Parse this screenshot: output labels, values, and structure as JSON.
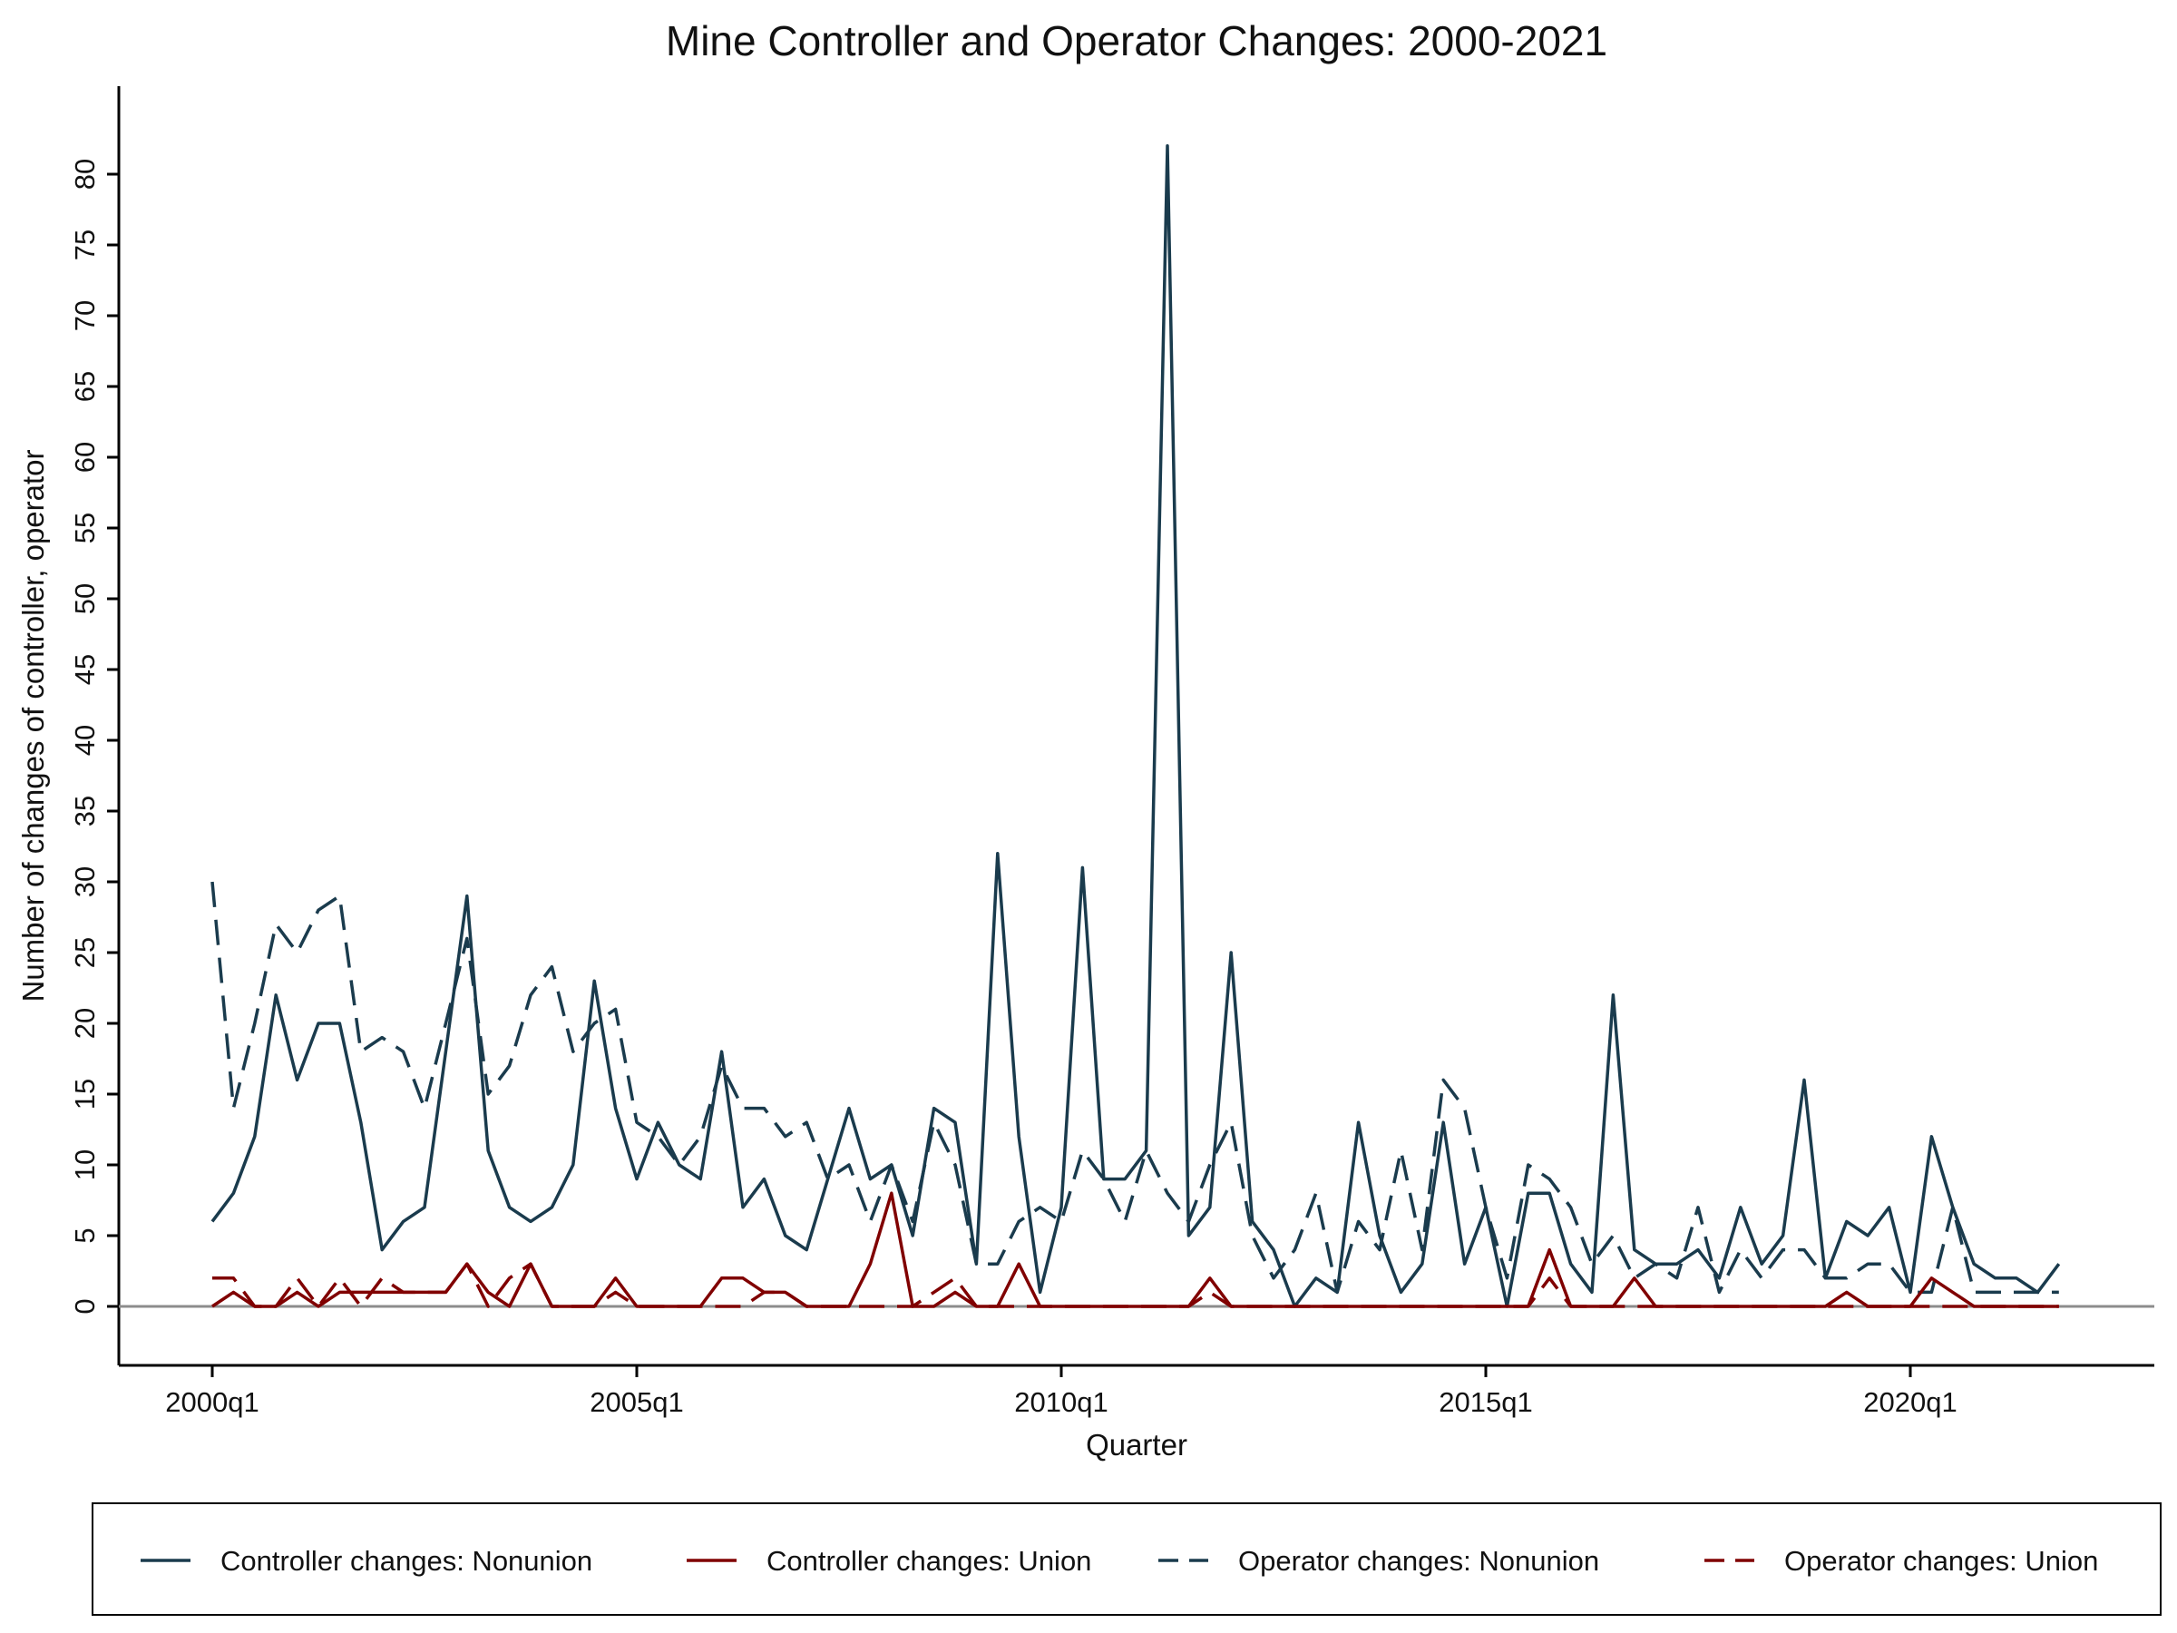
{
  "chart_data": {
    "type": "line",
    "title": "Mine Controller and Operator Changes: 2000-2021",
    "xlabel": "Quarter",
    "ylabel": "Number of changes of controller, operator",
    "xlim": [
      "2000q1",
      "2021q4"
    ],
    "ylim": [
      0,
      80
    ],
    "x_ticks": [
      "2000q1",
      "2005q1",
      "2010q1",
      "2015q1",
      "2020q1"
    ],
    "y_ticks": [
      0,
      5,
      10,
      15,
      20,
      25,
      30,
      35,
      40,
      45,
      50,
      55,
      60,
      65,
      70,
      75,
      80
    ],
    "reference_line": 0,
    "grid": false,
    "legend_position": "bottom",
    "colors": {
      "nonunion": "#1a3b4d",
      "union": "#800000",
      "zero_line": "#8c8c8c"
    },
    "quarter_start": "2000q1",
    "series": [
      {
        "name": "Controller changes: Nonunion",
        "style": "solid",
        "color": "#1a3b4d",
        "values": [
          6,
          8,
          12,
          22,
          16,
          20,
          20,
          13,
          4,
          6,
          7,
          18,
          29,
          11,
          7,
          6,
          7,
          10,
          23,
          14,
          9,
          13,
          10,
          9,
          18,
          7,
          9,
          5,
          4,
          9,
          14,
          9,
          10,
          5,
          14,
          13,
          3,
          32,
          12,
          1,
          7,
          31,
          9,
          9,
          11,
          82,
          5,
          7,
          25,
          6,
          4,
          0,
          2,
          1,
          13,
          5,
          1,
          3,
          13,
          3,
          7,
          0,
          8,
          8,
          3,
          1,
          22,
          4,
          3,
          3,
          4,
          2,
          7,
          3,
          5,
          16,
          2,
          6,
          5,
          7,
          1,
          12,
          7,
          3,
          2,
          2,
          1,
          3
        ]
      },
      {
        "name": "Controller changes: Union",
        "style": "solid",
        "color": "#800000",
        "values": [
          0,
          1,
          0,
          0,
          1,
          0,
          1,
          1,
          1,
          1,
          1,
          1,
          3,
          1,
          0,
          3,
          0,
          0,
          0,
          2,
          0,
          0,
          0,
          0,
          2,
          2,
          1,
          1,
          0,
          0,
          0,
          3,
          8,
          0,
          0,
          1,
          0,
          0,
          3,
          0,
          0,
          0,
          0,
          0,
          0,
          0,
          0,
          2,
          0,
          0,
          0,
          0,
          0,
          0,
          0,
          0,
          0,
          0,
          0,
          0,
          0,
          0,
          0,
          4,
          0,
          0,
          0,
          2,
          0,
          0,
          0,
          0,
          0,
          0,
          0,
          0,
          0,
          1,
          0,
          0,
          0,
          2,
          1,
          0,
          0,
          0,
          0,
          0
        ]
      },
      {
        "name": "Operator changes: Nonunion",
        "style": "dashed",
        "color": "#1a3b4d",
        "values": [
          30,
          14,
          20,
          27,
          25,
          28,
          29,
          18,
          19,
          18,
          14,
          20,
          26,
          15,
          17,
          22,
          24,
          18,
          20,
          21,
          13,
          12,
          10,
          12,
          17,
          14,
          14,
          12,
          13,
          9,
          10,
          6,
          10,
          6,
          13,
          10,
          3,
          3,
          6,
          7,
          6,
          11,
          9,
          6,
          11,
          8,
          6,
          10,
          13,
          5,
          2,
          4,
          8,
          1,
          6,
          4,
          11,
          4,
          16,
          14,
          7,
          2,
          10,
          9,
          7,
          3,
          5,
          2,
          3,
          2,
          7,
          1,
          4,
          2,
          4,
          4,
          2,
          2,
          3,
          3,
          1,
          1,
          7,
          1,
          1,
          1,
          1,
          1
        ]
      },
      {
        "name": "Operator changes: Union",
        "style": "dashed",
        "color": "#800000",
        "values": [
          2,
          2,
          0,
          0,
          2,
          0,
          2,
          0,
          2,
          1,
          1,
          1,
          3,
          0,
          2,
          3,
          0,
          0,
          0,
          1,
          0,
          0,
          0,
          0,
          0,
          0,
          1,
          1,
          0,
          0,
          0,
          0,
          0,
          0,
          1,
          2,
          0,
          0,
          0,
          0,
          0,
          0,
          0,
          0,
          0,
          0,
          0,
          1,
          0,
          0,
          0,
          0,
          0,
          0,
          0,
          0,
          0,
          0,
          0,
          0,
          0,
          0,
          0,
          2,
          0,
          0,
          0,
          0,
          0,
          0,
          0,
          0,
          0,
          0,
          0,
          0,
          0,
          0,
          0,
          0,
          0,
          0,
          0,
          0,
          0,
          0,
          0,
          0
        ]
      }
    ]
  }
}
